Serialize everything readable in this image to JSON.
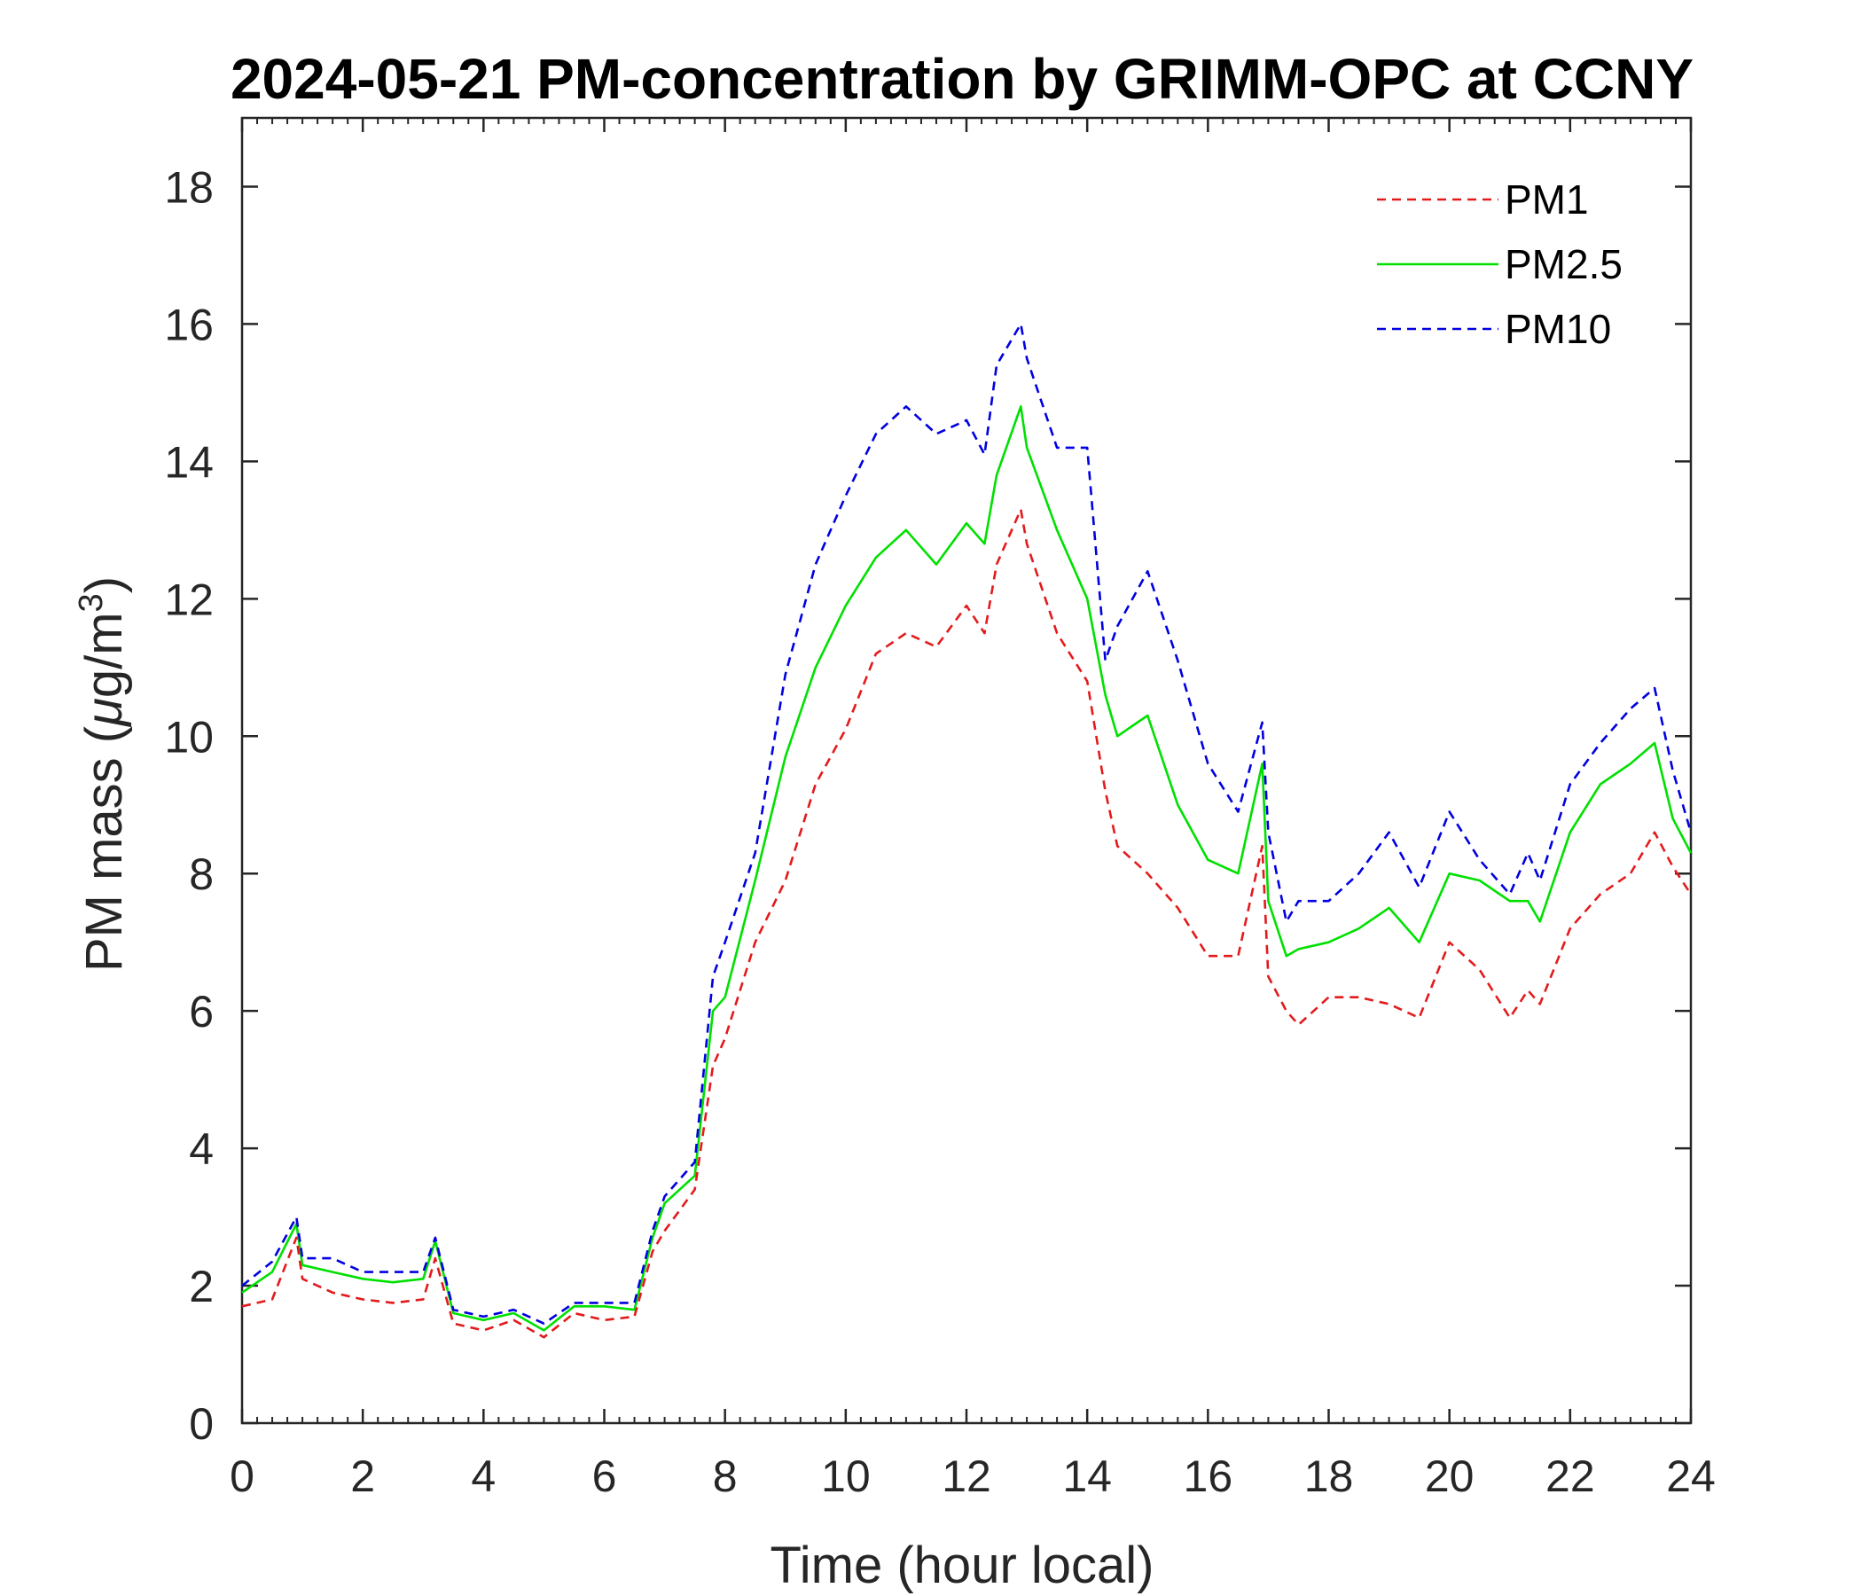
{
  "chart_data": {
    "type": "line",
    "title": "2024-05-21 PM-concentration by GRIMM-OPC at CCNY",
    "xlabel": "Time (hour local)",
    "ylabel": "PM mass (μg/m³)",
    "ylabel_parts": {
      "text": "PM mass (",
      "mu": "μ",
      "unit": "g/m",
      "sup": "3",
      "close": ")"
    },
    "xlim": [
      0,
      24
    ],
    "ylim": [
      0,
      19
    ],
    "xticks": [
      "0",
      "2",
      "4",
      "6",
      "8",
      "10",
      "12",
      "14",
      "16",
      "18",
      "20",
      "22",
      "24"
    ],
    "yticks": [
      "0",
      "2",
      "4",
      "6",
      "8",
      "10",
      "12",
      "14",
      "16",
      "18"
    ],
    "legend_position": "top-right",
    "grid": false,
    "x": [
      0,
      0.5,
      0.9,
      1.0,
      1.5,
      2.0,
      2.5,
      3.0,
      3.2,
      3.5,
      4.0,
      4.5,
      5.0,
      5.5,
      6.0,
      6.5,
      6.8,
      7.0,
      7.5,
      7.8,
      8.0,
      8.5,
      9.0,
      9.5,
      10.0,
      10.5,
      11.0,
      11.5,
      12.0,
      12.3,
      12.5,
      12.9,
      13.0,
      13.5,
      14.0,
      14.3,
      14.5,
      15.0,
      15.5,
      16.0,
      16.5,
      16.9,
      17.0,
      17.3,
      17.5,
      18.0,
      18.5,
      19.0,
      19.5,
      20.0,
      20.5,
      21.0,
      21.3,
      21.5,
      22.0,
      22.5,
      23.0,
      23.4,
      23.7,
      24.0
    ],
    "series": [
      {
        "name": "PM1",
        "color": "#e31a1c",
        "dash": "dashed",
        "values": [
          1.7,
          1.8,
          2.7,
          2.1,
          1.9,
          1.8,
          1.75,
          1.8,
          2.4,
          1.45,
          1.35,
          1.5,
          1.25,
          1.6,
          1.5,
          1.55,
          2.5,
          2.8,
          3.4,
          5.2,
          5.6,
          7.0,
          7.9,
          9.3,
          10.1,
          11.2,
          11.5,
          11.3,
          11.9,
          11.5,
          12.5,
          13.3,
          12.8,
          11.5,
          10.8,
          9.2,
          8.4,
          8.0,
          7.5,
          6.8,
          6.8,
          8.4,
          6.5,
          6.0,
          5.8,
          6.2,
          6.2,
          6.1,
          5.9,
          7.0,
          6.6,
          5.9,
          6.3,
          6.1,
          7.2,
          7.7,
          8.0,
          8.6,
          8.1,
          7.7
        ]
      },
      {
        "name": "PM2.5",
        "color": "#00e000",
        "dash": "solid",
        "values": [
          1.9,
          2.2,
          2.9,
          2.3,
          2.2,
          2.1,
          2.05,
          2.1,
          2.65,
          1.6,
          1.5,
          1.6,
          1.35,
          1.7,
          1.7,
          1.65,
          2.7,
          3.2,
          3.6,
          6.0,
          6.2,
          7.9,
          9.7,
          11.0,
          11.9,
          12.6,
          13.0,
          12.5,
          13.1,
          12.8,
          13.8,
          14.8,
          14.2,
          13.0,
          12.0,
          10.6,
          10.0,
          10.3,
          9.0,
          8.2,
          8.0,
          9.6,
          7.6,
          6.8,
          6.9,
          7.0,
          7.2,
          7.5,
          7.0,
          8.0,
          7.9,
          7.6,
          7.6,
          7.3,
          8.6,
          9.3,
          9.6,
          9.9,
          8.8,
          8.3
        ]
      },
      {
        "name": "PM10",
        "color": "#0000e0",
        "dash": "dashed",
        "values": [
          2.0,
          2.35,
          3.0,
          2.4,
          2.4,
          2.2,
          2.2,
          2.2,
          2.7,
          1.65,
          1.55,
          1.65,
          1.45,
          1.75,
          1.75,
          1.75,
          2.8,
          3.3,
          3.8,
          6.5,
          7.0,
          8.3,
          10.9,
          12.5,
          13.5,
          14.4,
          14.8,
          14.4,
          14.6,
          14.1,
          15.4,
          16.0,
          15.5,
          14.2,
          14.2,
          11.1,
          11.6,
          12.4,
          11.1,
          9.6,
          8.9,
          10.2,
          8.6,
          7.3,
          7.6,
          7.6,
          8.0,
          8.6,
          7.8,
          8.9,
          8.2,
          7.7,
          8.3,
          7.9,
          9.3,
          9.9,
          10.4,
          10.7,
          9.5,
          8.6
        ]
      }
    ]
  }
}
